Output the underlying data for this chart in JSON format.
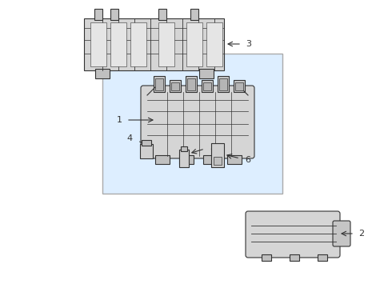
{
  "background_color": "#ffffff",
  "line_color": "#333333",
  "fill_light": "#e8e8e8",
  "fill_medium": "#d0d0d0",
  "fill_dark": "#b0b0b0",
  "box_bg": "#ddeeff",
  "figsize": [
    4.9,
    3.6
  ],
  "dpi": 100
}
